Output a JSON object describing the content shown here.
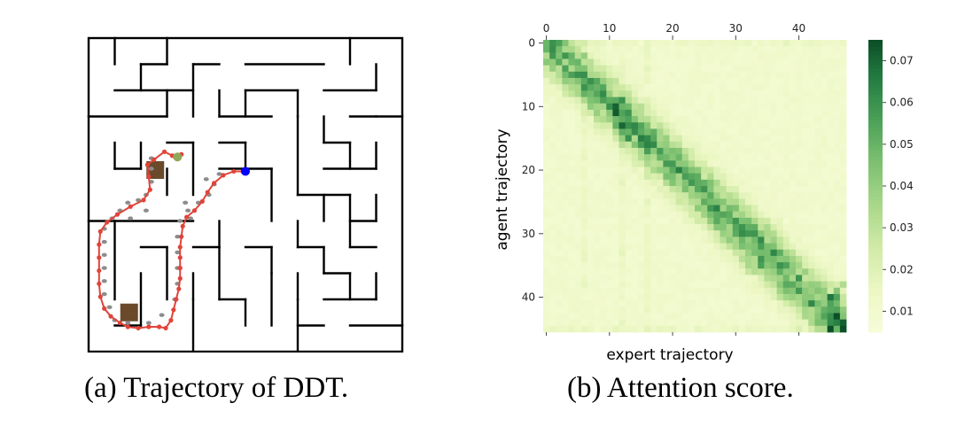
{
  "captions": {
    "a_label": "(a)",
    "a_text": "Trajectory of DDT.",
    "b_label": "(b)",
    "b_text": "Attention score."
  },
  "maze": {
    "grid_size": 12,
    "colors": {
      "wall": "#000000",
      "path": "#e0443a",
      "expert_dots": "#8c8c8c",
      "start_goal": "#0000ff",
      "end_point": "#8fa85a",
      "obstacle": "#6b4a2b"
    }
  },
  "chart_data": {
    "type": "heatmap",
    "title": "",
    "xlabel": "expert trajectory",
    "ylabel": "agent trajectory",
    "x_ticks": [
      0,
      10,
      20,
      30,
      40
    ],
    "y_ticks": [
      0,
      10,
      20,
      30,
      40
    ],
    "n_cols": 48,
    "n_rows": 46,
    "colorbar": {
      "min": 0.005,
      "max": 0.075,
      "ticks": [
        0.01,
        0.02,
        0.03,
        0.04,
        0.05,
        0.06,
        0.07
      ],
      "tick_labels": [
        "0.01",
        "0.02",
        "0.03",
        "0.04",
        "0.05",
        "0.06",
        "0.07"
      ],
      "colormap": "Greens"
    },
    "pattern": "high attention along a band from (agent 0, expert 0) to (agent 45, expert 47)"
  }
}
